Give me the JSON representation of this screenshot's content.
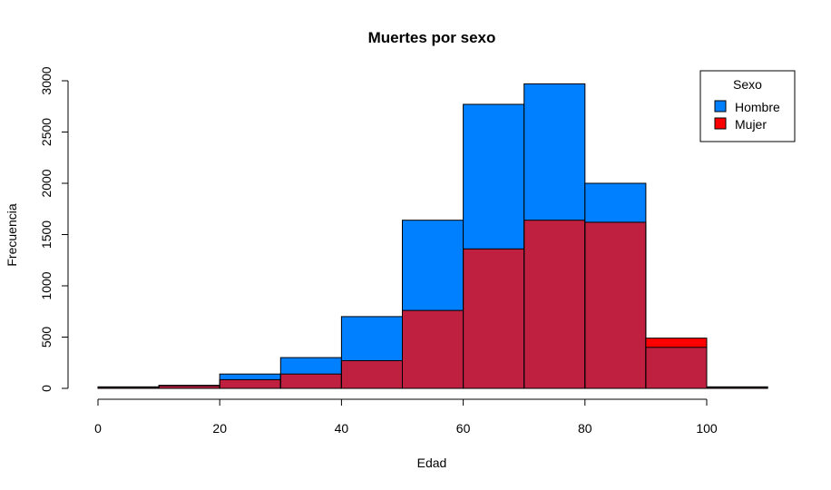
{
  "chart_data": {
    "type": "bar",
    "title": "Muertes por sexo",
    "xlabel": "Edad",
    "ylabel": "Frecuencia",
    "xlim": [
      0,
      110
    ],
    "ylim": [
      0,
      3000
    ],
    "x_ticks": [
      0,
      20,
      40,
      60,
      80,
      100
    ],
    "y_ticks": [
      0,
      500,
      1000,
      1500,
      2000,
      2500,
      3000
    ],
    "bins": [
      [
        0,
        10
      ],
      [
        10,
        20
      ],
      [
        20,
        30
      ],
      [
        30,
        40
      ],
      [
        40,
        50
      ],
      [
        50,
        60
      ],
      [
        60,
        70
      ],
      [
        70,
        80
      ],
      [
        80,
        90
      ],
      [
        90,
        100
      ],
      [
        100,
        110
      ]
    ],
    "series": [
      {
        "name": "Hombre",
        "color": "#0080ff",
        "values": [
          10,
          25,
          140,
          300,
          700,
          1640,
          2770,
          2970,
          2000,
          400,
          10
        ]
      },
      {
        "name": "Mujer",
        "color": "#ff0000",
        "values": [
          15,
          30,
          85,
          140,
          270,
          760,
          1360,
          1640,
          1620,
          490,
          15
        ]
      }
    ],
    "overlap_color": "#c02040",
    "legend": {
      "title": "Sexo",
      "position": "top-right"
    },
    "grid": false
  }
}
